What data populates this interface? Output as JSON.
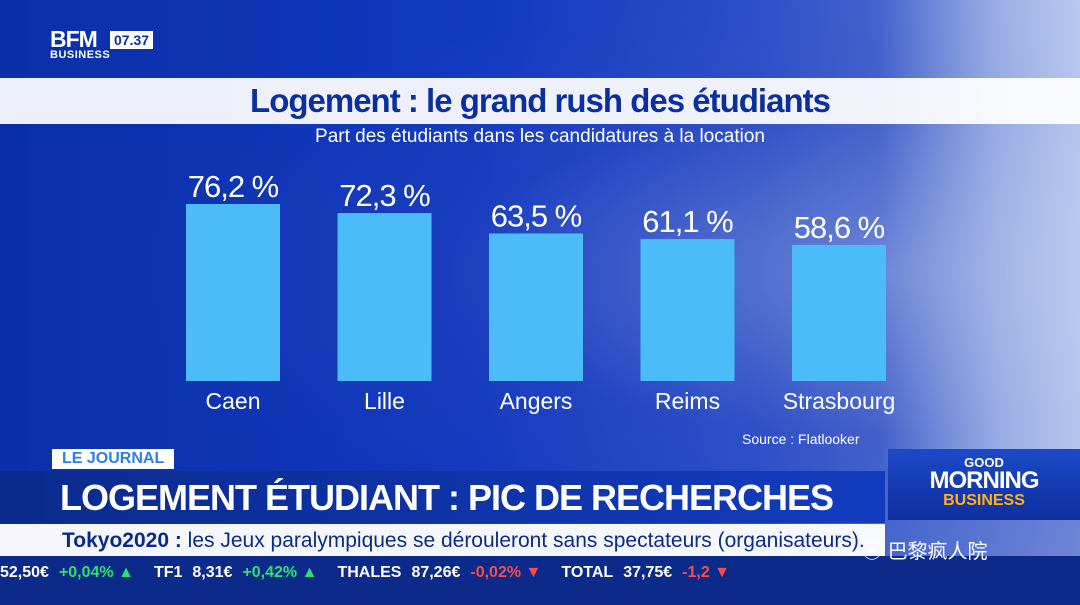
{
  "channel": {
    "logo_line1": "BFM",
    "logo_line2": "BUSINESS",
    "time": "07.37"
  },
  "chart_data": {
    "type": "bar",
    "title": "Logement : le grand rush des étudiants",
    "subtitle": "Part des étudiants dans les candidatures à la location",
    "categories": [
      "Caen",
      "Lille",
      "Angers",
      "Reims",
      "Strasbourg"
    ],
    "values": [
      76.2,
      72.3,
      63.5,
      61.1,
      58.6
    ],
    "value_labels": [
      "76,2 %",
      "72,3 %",
      "63,5 %",
      "61,1 %",
      "58,6 %"
    ],
    "unit": "%",
    "bar_color": "#4bbcf7",
    "label_color": "#ffffff",
    "grid": false,
    "source": "Source : Flatlooker"
  },
  "lower_third": {
    "tag": "LE JOURNAL",
    "headline": "LOGEMENT ÉTUDIANT : PIC DE RECHERCHES",
    "ticker_keyword": "Tokyo2020 :",
    "ticker_text": " les Jeux paralympiques se dérouleront sans spectateurs (organisateurs)."
  },
  "market": [
    {
      "name": "",
      "value": "52,50€",
      "change": "+0,04%",
      "dir": "up"
    },
    {
      "name": "TF1",
      "value": "8,31€",
      "change": "+0,42%",
      "dir": "up"
    },
    {
      "name": "THALES",
      "value": "87,26€",
      "change": "-0,02%",
      "dir": "down"
    },
    {
      "name": "TOTAL",
      "value": "37,75€",
      "change": "-1,2",
      "dir": "down"
    }
  ],
  "show": {
    "line1": "GOOD",
    "line2": "MORNING",
    "line3": "BUSINESS"
  },
  "watermark": "巴黎疯人院",
  "colors": {
    "navy": "#0b2f9e",
    "bar": "#4bbcf7",
    "tag_text": "#2a7fe8",
    "accent_orange": "#ffb01a"
  }
}
